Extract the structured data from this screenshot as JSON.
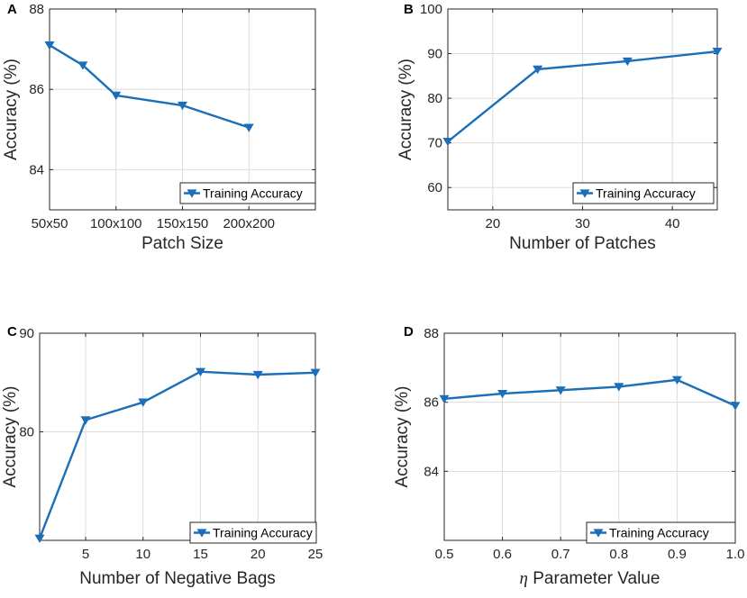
{
  "colors": {
    "series": "#1a6fb8",
    "grid": "#dcdcdc",
    "axis": "#262626",
    "background": "#ffffff"
  },
  "chart_data": [
    {
      "id": "A",
      "panel_label": "A",
      "type": "line",
      "title": "",
      "xlabel": "Patch Size",
      "ylabel": "Accuracy (%)",
      "categorical_x": true,
      "xlim": [
        0,
        4
      ],
      "ylim": [
        83,
        88
      ],
      "xticks": [
        0,
        1,
        2,
        3,
        4
      ],
      "xticklabels": [
        "50x50",
        "100x100",
        "150x150",
        "200x200"
      ],
      "xticklabel_positions": [
        0,
        1,
        2,
        3
      ],
      "yticks": [
        84,
        86,
        88
      ],
      "yticklabels": [
        "84",
        "86",
        "88"
      ],
      "series": [
        {
          "name": "Training Accuracy",
          "x": [
            0,
            0.5,
            1,
            2,
            3
          ],
          "y": [
            87.1,
            86.6,
            85.85,
            85.6,
            85.05
          ]
        }
      ],
      "legend": {
        "entry": "Training Accuracy",
        "position": "bottom-right"
      }
    },
    {
      "id": "B",
      "panel_label": "B",
      "type": "line",
      "title": "",
      "xlabel": "Number of Patches",
      "ylabel": "Accuracy (%)",
      "categorical_x": false,
      "xlim": [
        15,
        45
      ],
      "ylim": [
        55,
        100
      ],
      "xticks": [
        20,
        30,
        40
      ],
      "xticklabels": [
        "20",
        "30",
        "40"
      ],
      "yticks": [
        60,
        70,
        80,
        90,
        100
      ],
      "yticklabels": [
        "60",
        "70",
        "80",
        "90",
        "100"
      ],
      "series": [
        {
          "name": "Training Accuracy",
          "x": [
            15,
            25,
            35,
            45
          ],
          "y": [
            70.3,
            86.5,
            88.3,
            90.5
          ]
        }
      ],
      "legend": {
        "entry": "Training Accuracy",
        "position": "bottom-right"
      }
    },
    {
      "id": "C",
      "panel_label": "C",
      "type": "line",
      "title": "",
      "xlabel": "Number of Negative Bags",
      "ylabel": "Accuracy (%)",
      "categorical_x": false,
      "xlim": [
        1,
        25
      ],
      "ylim": [
        69,
        90
      ],
      "xticks": [
        5,
        10,
        15,
        20,
        25
      ],
      "xticklabels": [
        "5",
        "10",
        "15",
        "20",
        "25"
      ],
      "yticks": [
        80,
        90
      ],
      "yticklabels": [
        "80",
        "90"
      ],
      "series": [
        {
          "name": "Training Accuracy",
          "x": [
            1,
            5,
            10,
            15,
            20,
            25
          ],
          "y": [
            69.2,
            81.2,
            83.0,
            86.1,
            85.8,
            86.0
          ]
        }
      ],
      "legend": {
        "entry": "Training Accuracy",
        "position": "bottom-right"
      }
    },
    {
      "id": "D",
      "panel_label": "D",
      "type": "line",
      "title": "",
      "xlabel": "η Parameter Value",
      "xlabel_symbol": "η",
      "xlabel_rest": " Parameter Value",
      "ylabel": "Accuracy (%)",
      "categorical_x": false,
      "xlim": [
        0.5,
        1.0
      ],
      "ylim": [
        82,
        88
      ],
      "xticks": [
        0.5,
        0.6,
        0.7,
        0.8,
        0.9,
        1.0
      ],
      "xticklabels": [
        "0.5",
        "0.6",
        "0.7",
        "0.8",
        "0.9",
        "1.0"
      ],
      "yticks": [
        84,
        86,
        88
      ],
      "yticklabels": [
        "84",
        "86",
        "88"
      ],
      "series": [
        {
          "name": "Training Accuracy",
          "x": [
            0.5,
            0.6,
            0.7,
            0.8,
            0.9,
            1.0
          ],
          "y": [
            86.1,
            86.25,
            86.35,
            86.45,
            86.65,
            85.9
          ]
        }
      ],
      "legend": {
        "entry": "Training Accuracy",
        "position": "bottom-right"
      }
    }
  ]
}
